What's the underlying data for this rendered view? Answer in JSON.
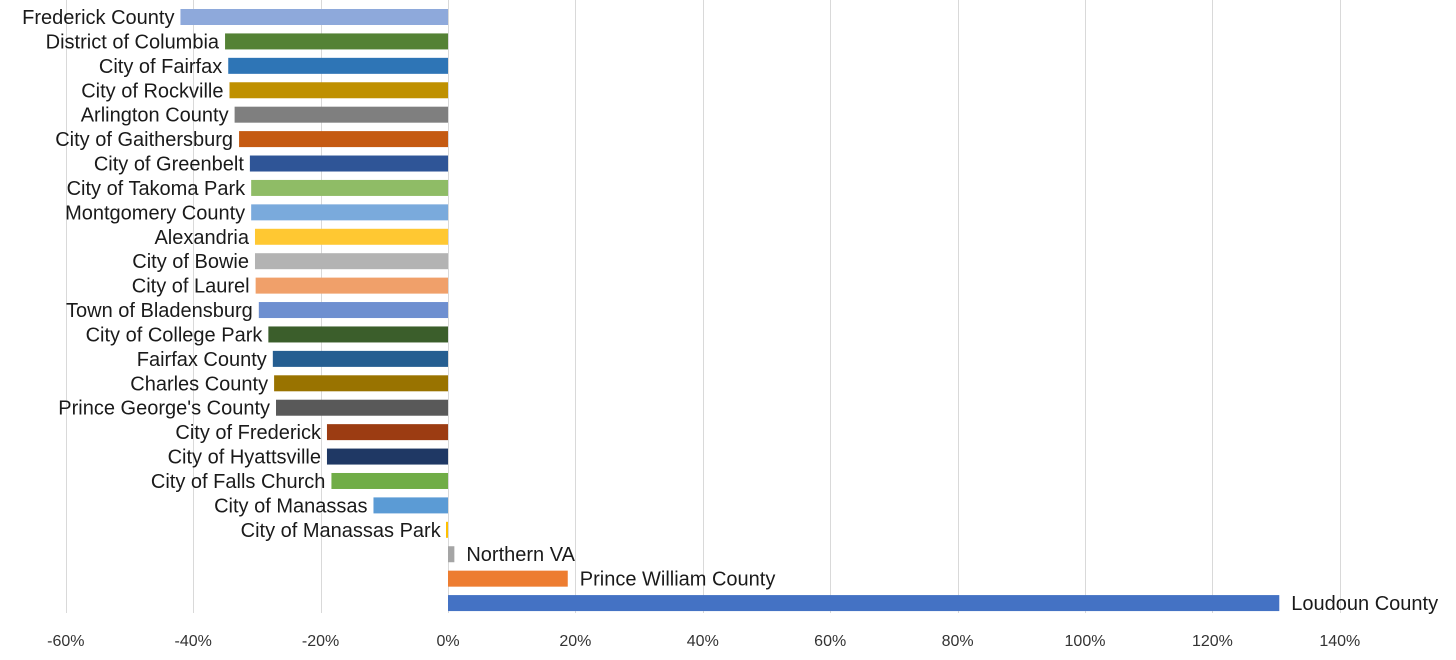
{
  "chart_data": {
    "type": "bar",
    "orientation": "horizontal",
    "title": "",
    "xlabel": "",
    "ylabel": "",
    "xlim": [
      -0.6,
      1.4
    ],
    "x_ticks": [
      -0.6,
      -0.4,
      -0.2,
      0,
      0.2,
      0.4,
      0.6,
      0.8,
      1.0,
      1.2,
      1.4
    ],
    "x_tick_labels": [
      "-60%",
      "-40%",
      "-20%",
      "0%",
      "20%",
      "40%",
      "60%",
      "80%",
      "100%",
      "120%",
      "140%"
    ],
    "grid": "vertical",
    "legend": "none",
    "categories": [
      "Frederick County",
      "District of Columbia",
      "City of Fairfax",
      "City of Rockville",
      "Arlington County",
      "City of Gaithersburg",
      "City of Greenbelt",
      "City of Takoma Park",
      "Montgomery County",
      "Alexandria",
      "City of Bowie",
      "City of Laurel",
      "Town of Bladensburg",
      "City of College Park",
      "Fairfax County",
      "Charles County",
      "Prince George's County",
      "City of Frederick",
      "City of Hyattsville",
      "City of Falls Church",
      "City of Manassas",
      "City of Manassas Park",
      "Northern VA",
      "Prince William County",
      "Loudoun County"
    ],
    "values": [
      -0.42,
      -0.35,
      -0.345,
      -0.343,
      -0.335,
      -0.328,
      -0.311,
      -0.309,
      -0.309,
      -0.303,
      -0.303,
      -0.302,
      -0.297,
      -0.282,
      -0.275,
      -0.273,
      -0.27,
      -0.19,
      -0.19,
      -0.183,
      -0.117,
      -0.002,
      0.01,
      0.188,
      1.305
    ],
    "colors": [
      "#8EA9DB",
      "#548235",
      "#2E75B6",
      "#BF9000",
      "#7F7F7F",
      "#C55A11",
      "#2F5597",
      "#8FBC66",
      "#7AAADC",
      "#FFC832",
      "#B3B3B3",
      "#F0A06A",
      "#6E8FD0",
      "#3B5E2B",
      "#255E91",
      "#997300",
      "#595959",
      "#9C3C12",
      "#1F3864",
      "#70AD47",
      "#5B9BD5",
      "#FFC000",
      "#A5A5A5",
      "#ED7D31",
      "#4472C4"
    ],
    "grid_color": "#d9d9d9",
    "label_color": "#1a1a1a",
    "tick_color": "#333333"
  }
}
